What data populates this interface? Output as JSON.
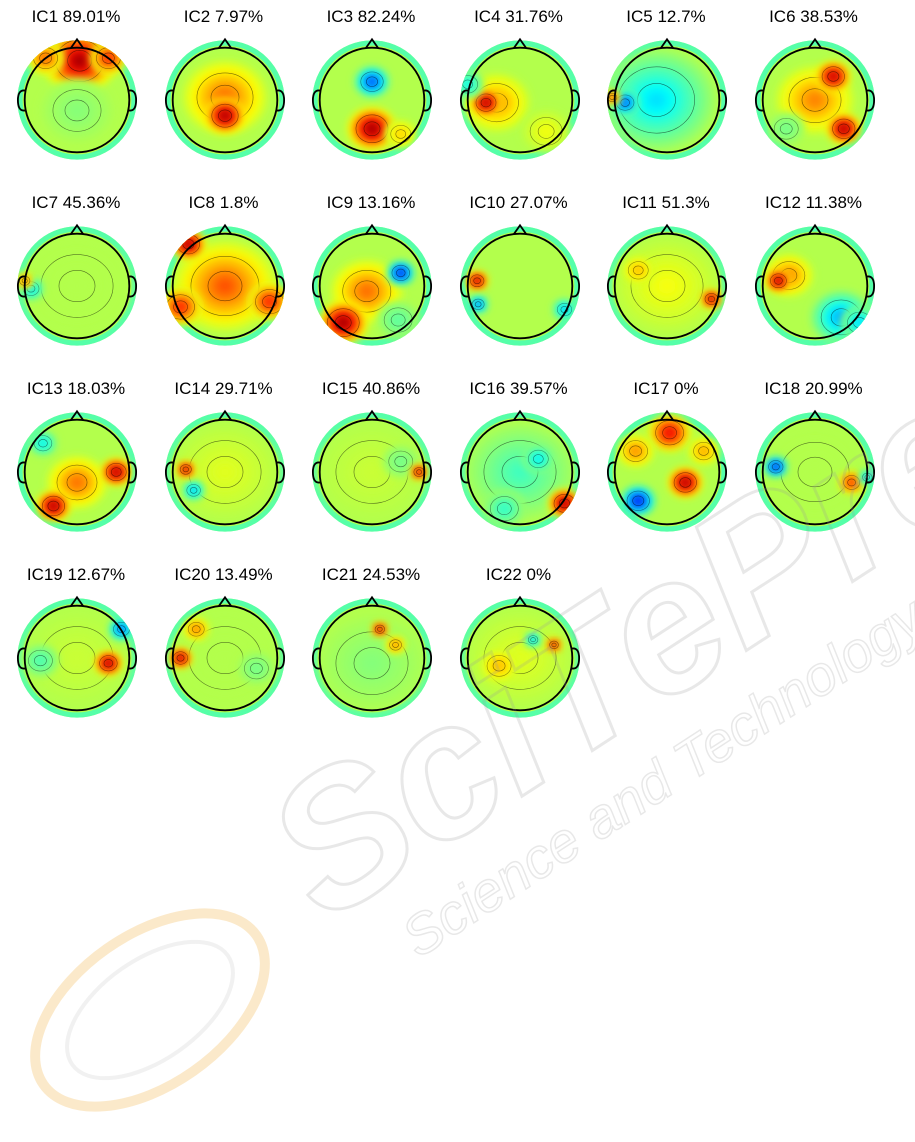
{
  "components": [
    {
      "label": "IC1 89.01%",
      "blobs": [
        [
          0.05,
          -0.75,
          0.6,
          0.95
        ],
        [
          0.6,
          -0.8,
          0.3,
          0.7
        ],
        [
          -0.6,
          -0.8,
          0.3,
          0.55
        ],
        [
          0.0,
          0.2,
          0.6,
          -0.1
        ]
      ]
    },
    {
      "label": "IC2 7.97%",
      "blobs": [
        [
          0.0,
          0.3,
          0.33,
          1.0
        ],
        [
          0.0,
          -0.05,
          0.7,
          0.5
        ]
      ]
    },
    {
      "label": "IC3 82.24%",
      "blobs": [
        [
          0.0,
          0.55,
          0.4,
          1.0
        ],
        [
          0.55,
          0.65,
          0.25,
          0.3
        ],
        [
          0.0,
          -0.35,
          0.28,
          -0.85
        ]
      ]
    },
    {
      "label": "IC4 31.76%",
      "blobs": [
        [
          -0.65,
          0.05,
          0.25,
          1.0
        ],
        [
          -0.45,
          0.05,
          0.55,
          0.4
        ],
        [
          -1.0,
          -0.3,
          0.25,
          -0.4
        ],
        [
          0.5,
          0.6,
          0.4,
          0.15
        ]
      ]
    },
    {
      "label": "IC5 12.7%",
      "blobs": [
        [
          -0.8,
          0.05,
          0.22,
          -0.85
        ],
        [
          -0.2,
          0.0,
          0.95,
          -0.45
        ],
        [
          -1.05,
          -0.05,
          0.12,
          0.7
        ]
      ]
    },
    {
      "label": "IC6 38.53%",
      "blobs": [
        [
          0.35,
          -0.45,
          0.28,
          0.95
        ],
        [
          0.55,
          0.55,
          0.28,
          1.0
        ],
        [
          0.0,
          0.0,
          0.65,
          0.45
        ],
        [
          -0.55,
          0.55,
          0.3,
          -0.15
        ]
      ]
    },
    {
      "label": "IC7 45.36%",
      "blobs": [
        [
          -0.88,
          0.05,
          0.2,
          -0.5
        ],
        [
          -1.0,
          -0.1,
          0.13,
          0.55
        ],
        [
          0.0,
          0.0,
          0.9,
          0.0
        ]
      ]
    },
    {
      "label": "IC8 1.8%",
      "blobs": [
        [
          -0.7,
          -0.8,
          0.28,
          1.0
        ],
        [
          0.0,
          0.0,
          0.85,
          0.55
        ],
        [
          0.85,
          0.3,
          0.35,
          0.7
        ],
        [
          -0.85,
          0.4,
          0.35,
          0.7
        ]
      ]
    },
    {
      "label": "IC9 13.16%",
      "blobs": [
        [
          0.55,
          -0.25,
          0.22,
          -1.0
        ],
        [
          -0.55,
          0.7,
          0.4,
          1.0
        ],
        [
          -0.1,
          0.1,
          0.6,
          0.5
        ],
        [
          0.5,
          0.65,
          0.35,
          -0.2
        ]
      ]
    },
    {
      "label": "IC10 27.07%",
      "blobs": [
        [
          -0.82,
          -0.1,
          0.17,
          1.0
        ],
        [
          -0.8,
          0.35,
          0.15,
          -0.8
        ],
        [
          0.85,
          0.45,
          0.18,
          -0.6
        ]
      ]
    },
    {
      "label": "IC11 51.3%",
      "blobs": [
        [
          0.85,
          0.25,
          0.16,
          1.0
        ],
        [
          -0.55,
          -0.3,
          0.25,
          0.35
        ],
        [
          0.0,
          0.0,
          0.9,
          0.15
        ]
      ]
    },
    {
      "label": "IC12 11.38%",
      "blobs": [
        [
          -0.7,
          -0.1,
          0.2,
          1.0
        ],
        [
          -0.5,
          -0.2,
          0.4,
          0.45
        ],
        [
          0.5,
          0.6,
          0.5,
          -0.6
        ],
        [
          0.85,
          0.7,
          0.3,
          -0.5
        ]
      ]
    },
    {
      "label": "IC13 18.03%",
      "blobs": [
        [
          0.75,
          0.0,
          0.25,
          1.0
        ],
        [
          -0.45,
          0.65,
          0.28,
          1.0
        ],
        [
          -0.65,
          -0.55,
          0.22,
          -0.45
        ],
        [
          0.0,
          0.2,
          0.5,
          0.5
        ]
      ]
    },
    {
      "label": "IC14 29.71%",
      "blobs": [
        [
          -0.75,
          -0.05,
          0.14,
          1.0
        ],
        [
          -0.6,
          0.35,
          0.17,
          -0.6
        ],
        [
          0.0,
          0.0,
          0.9,
          0.1
        ]
      ]
    },
    {
      "label": "IC15 40.86%",
      "blobs": [
        [
          0.9,
          0.0,
          0.13,
          1.0
        ],
        [
          0.0,
          0.0,
          0.9,
          0.05
        ],
        [
          0.55,
          -0.2,
          0.3,
          -0.15
        ]
      ]
    },
    {
      "label": "IC16 39.57%",
      "blobs": [
        [
          0.85,
          0.6,
          0.26,
          1.0
        ],
        [
          0.35,
          -0.25,
          0.25,
          -0.45
        ],
        [
          0.0,
          0.0,
          0.9,
          -0.25
        ],
        [
          -0.3,
          0.7,
          0.35,
          -0.3
        ]
      ]
    },
    {
      "label": "IC17 0%",
      "blobs": [
        [
          0.35,
          0.2,
          0.28,
          1.0
        ],
        [
          -0.55,
          0.55,
          0.28,
          -1.0
        ],
        [
          0.05,
          -0.75,
          0.35,
          0.8
        ],
        [
          -0.6,
          -0.4,
          0.3,
          0.45
        ],
        [
          0.7,
          -0.4,
          0.25,
          0.4
        ]
      ]
    },
    {
      "label": "IC18 20.99%",
      "blobs": [
        [
          -0.75,
          -0.1,
          0.18,
          -1.0
        ],
        [
          0.7,
          0.2,
          0.2,
          0.7
        ],
        [
          1.0,
          0.1,
          0.12,
          -0.6
        ],
        [
          0.0,
          0.0,
          0.85,
          0.0
        ]
      ]
    },
    {
      "label": "IC19 12.67%",
      "blobs": [
        [
          0.6,
          0.1,
          0.22,
          1.0
        ],
        [
          0.85,
          -0.55,
          0.2,
          -0.8
        ],
        [
          -0.7,
          0.05,
          0.3,
          -0.25
        ],
        [
          0.0,
          0.0,
          0.9,
          0.05
        ]
      ]
    },
    {
      "label": "IC20 13.49%",
      "blobs": [
        [
          -0.85,
          0.0,
          0.18,
          1.0
        ],
        [
          -0.55,
          -0.55,
          0.2,
          0.5
        ],
        [
          0.0,
          0.0,
          0.9,
          0.0
        ],
        [
          0.6,
          0.2,
          0.3,
          -0.15
        ]
      ]
    },
    {
      "label": "IC21 24.53%",
      "blobs": [
        [
          0.15,
          -0.55,
          0.12,
          1.0
        ],
        [
          0.45,
          -0.25,
          0.15,
          0.5
        ],
        [
          0.0,
          0.1,
          0.9,
          -0.1
        ]
      ]
    },
    {
      "label": "IC22 0%",
      "blobs": [
        [
          0.65,
          -0.25,
          0.11,
          1.0
        ],
        [
          0.25,
          -0.35,
          0.12,
          -0.6
        ],
        [
          -0.4,
          0.15,
          0.3,
          0.35
        ],
        [
          0.0,
          0.0,
          0.9,
          0.1
        ]
      ]
    }
  ],
  "watermark": {
    "text_main": "SciTePress",
    "text_sub": "Science and Technology Publications",
    "color_main": "#c9c9c9",
    "color_logo": "#f5c26a"
  }
}
